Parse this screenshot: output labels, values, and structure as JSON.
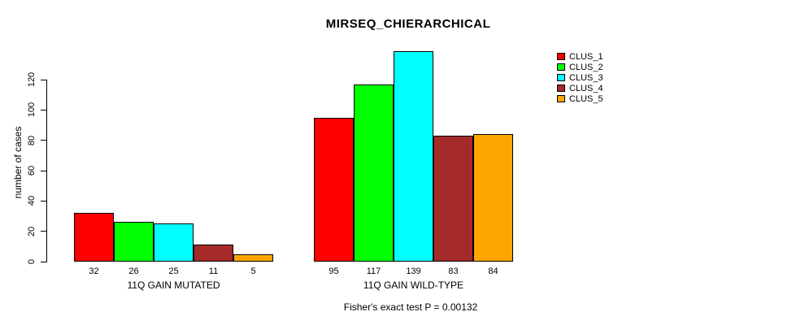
{
  "title": "MIRSEQ_CHIERARCHICAL",
  "chart_data": {
    "type": "bar",
    "title": "MIRSEQ_CHIERARCHICAL",
    "ylabel": "number of cases",
    "xlabel": "",
    "yticks": [
      0,
      20,
      40,
      60,
      80,
      100,
      120
    ],
    "ylim": [
      0,
      140
    ],
    "grid": false,
    "legend_position": "right",
    "categories": [
      "11Q GAIN MUTATED",
      "11Q GAIN WILD-TYPE"
    ],
    "series": [
      {
        "name": "CLUS_1",
        "color": "#FF0000",
        "values": [
          32,
          95
        ]
      },
      {
        "name": "CLUS_2",
        "color": "#00FF00",
        "values": [
          26,
          117
        ]
      },
      {
        "name": "CLUS_3",
        "color": "#00FFFF",
        "values": [
          25,
          139
        ]
      },
      {
        "name": "CLUS_4",
        "color": "#A52A2A",
        "values": [
          11,
          83
        ]
      },
      {
        "name": "CLUS_5",
        "color": "#FFA500",
        "values": [
          5,
          84
        ]
      }
    ],
    "groups": [
      {
        "label": "11Q GAIN MUTATED",
        "values": [
          32,
          26,
          25,
          11,
          5
        ]
      },
      {
        "label": "11Q GAIN WILD-TYPE",
        "values": [
          95,
          117,
          139,
          83,
          84
        ]
      }
    ],
    "bar_value_labels_shown": true,
    "annotation": "Fisher's exact test P = 0.00132"
  }
}
